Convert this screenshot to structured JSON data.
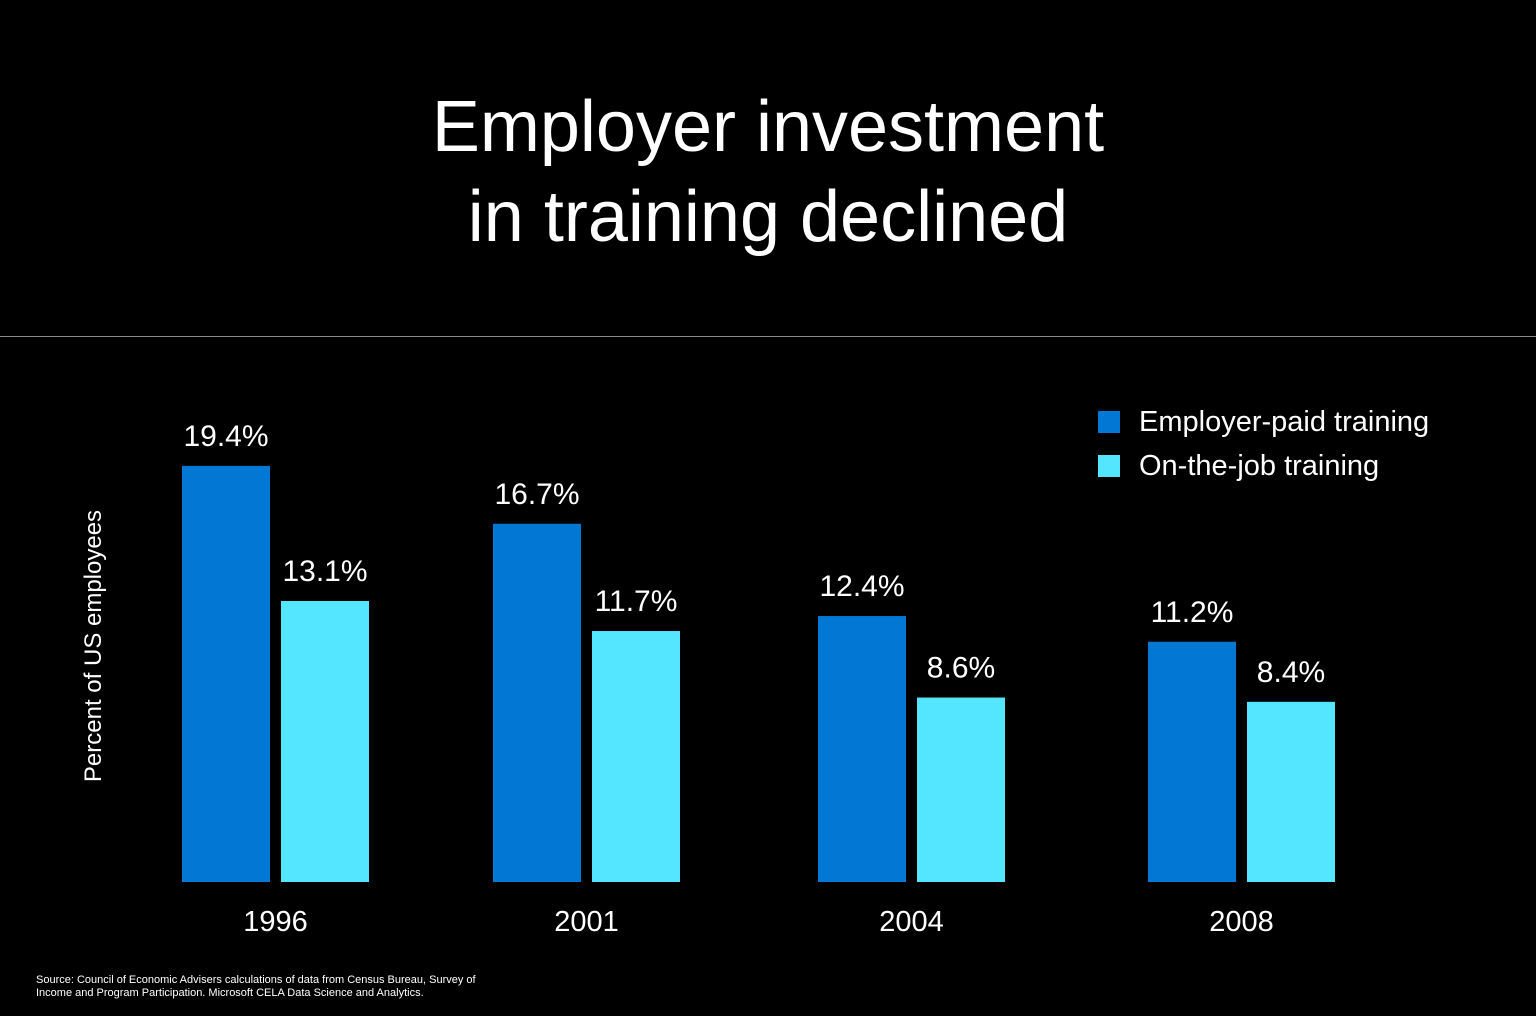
{
  "title": {
    "line1": "Employer investment",
    "line2": "in training declined"
  },
  "colors": {
    "employer_paid": "#0277d4",
    "on_the_job": "#54e6ff",
    "background": "#000000"
  },
  "legend": {
    "items": [
      {
        "label": "Employer-paid training",
        "color": "#0277d4"
      },
      {
        "label": "On-the-job training",
        "color": "#54e6ff"
      }
    ]
  },
  "source": "Source: Council of Economic Advisers calculations of data from Census Bureau, Survey of Income and Program Participation. Microsoft CELA Data Science and Analytics.",
  "chart_data": {
    "type": "bar",
    "title": "Employer investment in training declined",
    "xlabel": "",
    "ylabel": "Percent of US employees",
    "ylim": [
      0,
      20
    ],
    "grid": false,
    "legend_position": "top-right",
    "categories": [
      "1996",
      "2001",
      "2004",
      "2008"
    ],
    "series": [
      {
        "name": "Employer-paid training",
        "color": "#0277d4",
        "values": [
          19.4,
          16.7,
          12.4,
          11.2
        ],
        "labels": [
          "19.4%",
          "16.7%",
          "12.4%",
          "11.2%"
        ]
      },
      {
        "name": "On-the-job training",
        "color": "#54e6ff",
        "values": [
          13.1,
          11.7,
          8.6,
          8.4
        ],
        "labels": [
          "13.1%",
          "11.7%",
          "8.6%",
          "8.4%"
        ]
      }
    ]
  }
}
